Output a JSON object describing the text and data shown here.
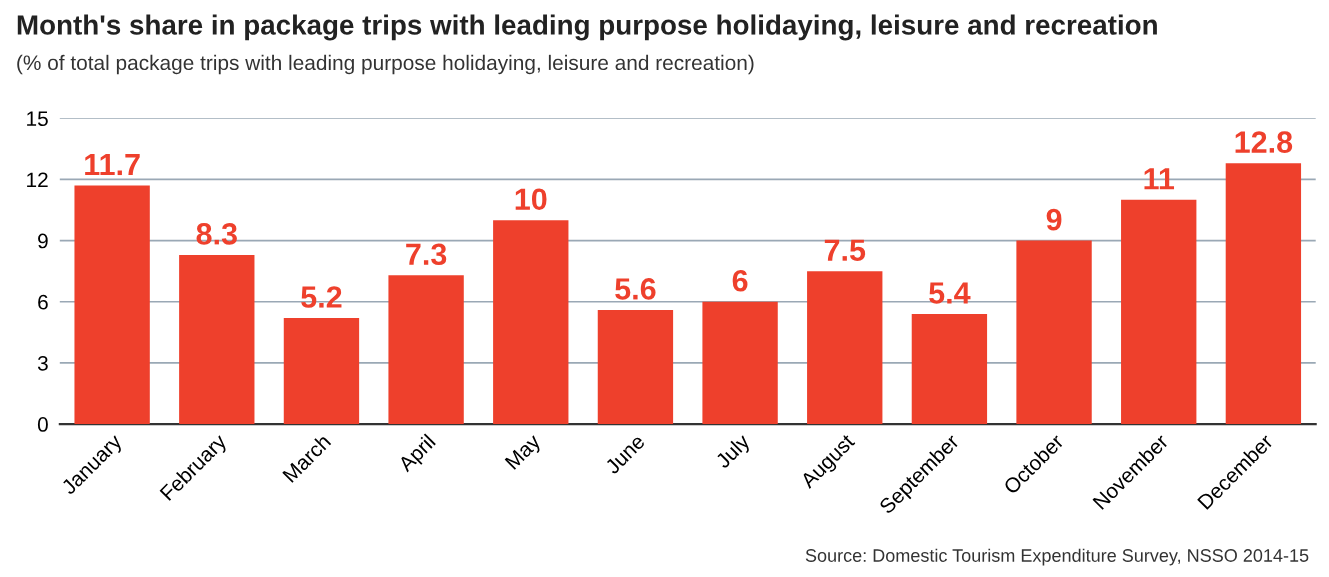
{
  "chart_data": {
    "type": "bar",
    "title": "Month's share in package trips with leading purpose holidaying, leisure and recreation",
    "subtitle": "(% of total package trips with leading purpose holidaying, leisure and recreation)",
    "categories": [
      "January",
      "February",
      "March",
      "April",
      "May",
      "June",
      "July",
      "August",
      "September",
      "October",
      "November",
      "December"
    ],
    "values": [
      11.7,
      8.3,
      5.2,
      7.3,
      10,
      5.6,
      6,
      7.5,
      5.4,
      9,
      11,
      12.8
    ],
    "color": "#ee402c",
    "data_labels": true,
    "ylim": [
      0,
      15
    ],
    "yticks": [
      0,
      3,
      6,
      9,
      12,
      15
    ],
    "grid": "y",
    "annotations": [
      "Source: Domestic Tourism Expenditure Survey, NSSO 2014-15"
    ]
  }
}
